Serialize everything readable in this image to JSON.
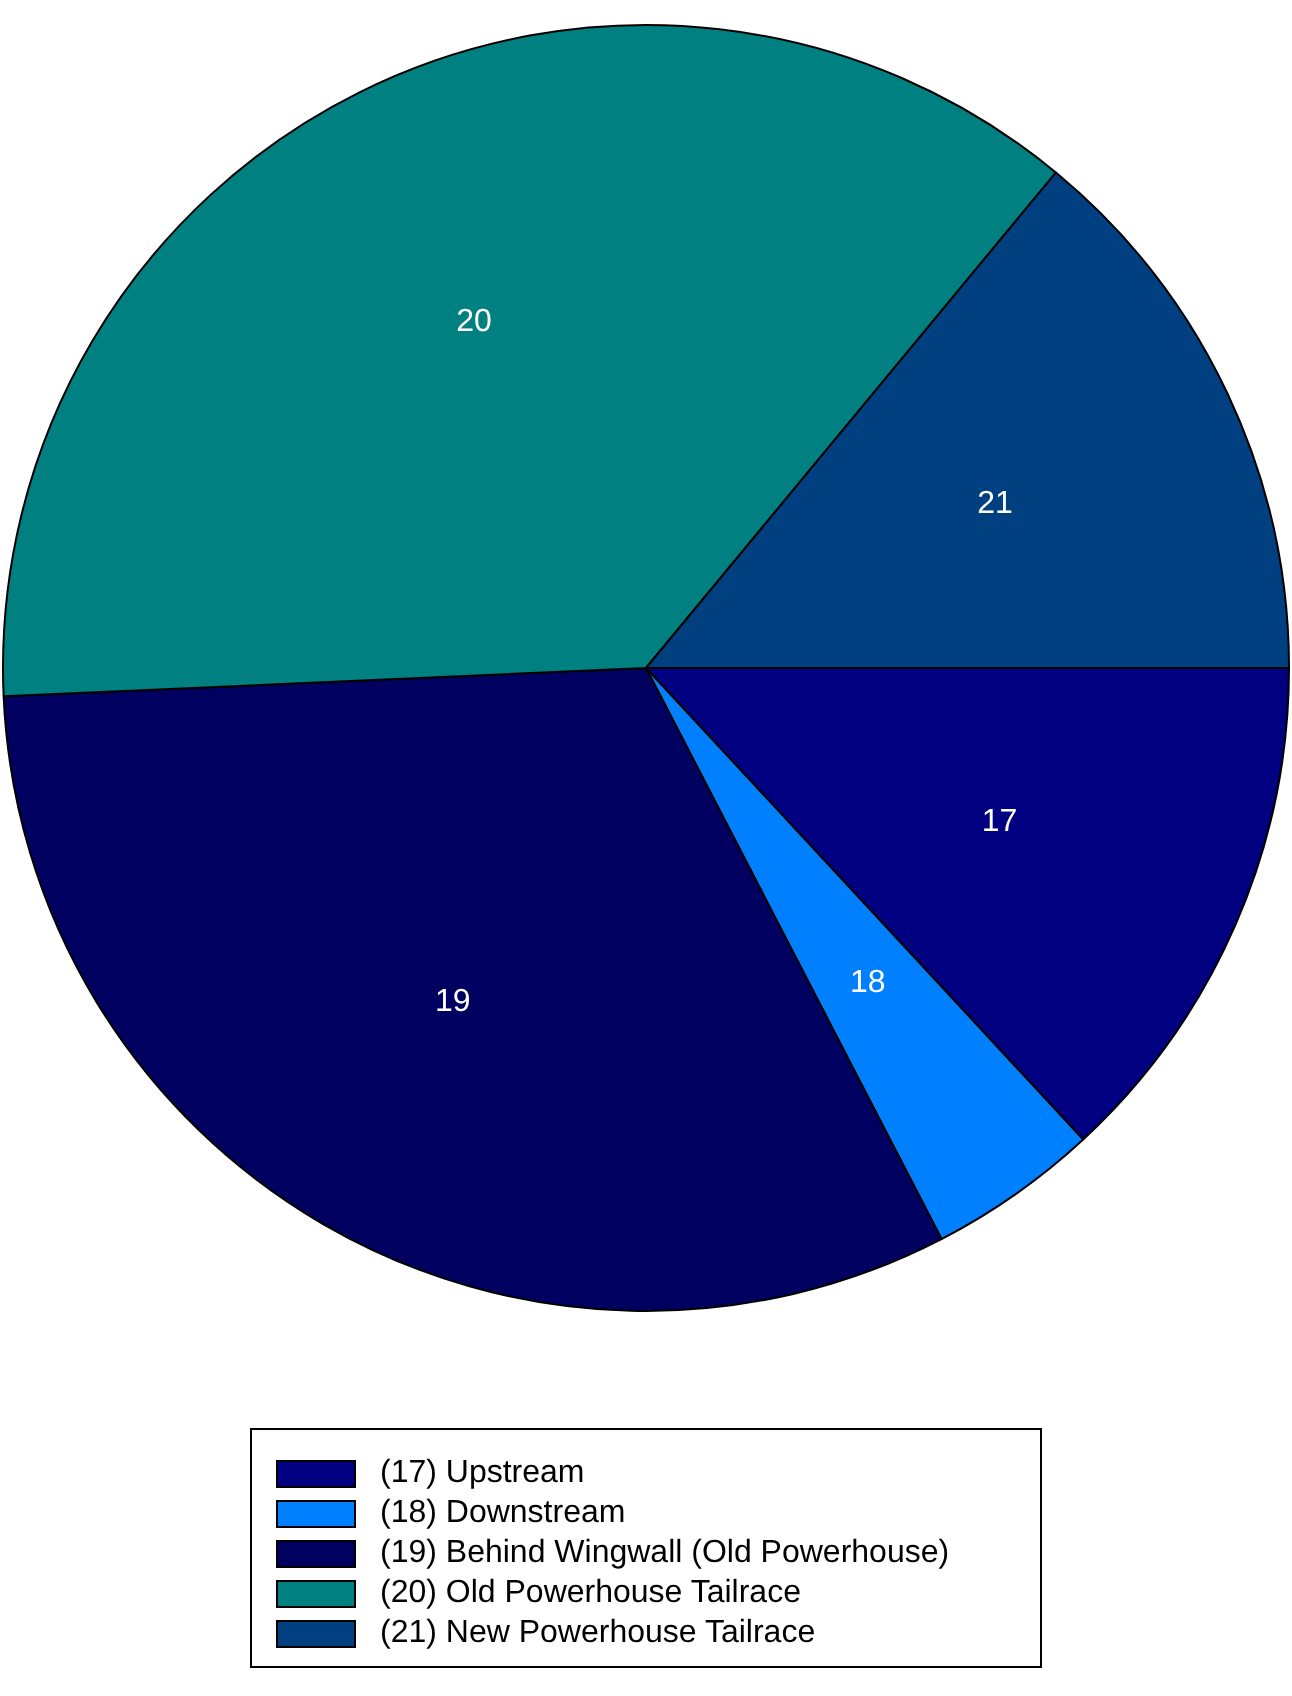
{
  "chart_data": {
    "type": "pie",
    "categories": [
      "(17) Upstream",
      "(18) Downstream",
      "(19) Behind Wingwall (Old Powerhouse)",
      "(20) Old Powerhouse Tailrace",
      "(21) New Powerhouse Tailrace"
    ],
    "values": [
      13.1,
      4.3,
      31.9,
      36.7,
      14.0
    ],
    "colors": [
      "#000080",
      "#0080ff",
      "#000060",
      "#008080",
      "#004080"
    ],
    "annotations": [
      "17",
      "18",
      "19",
      "20",
      "21"
    ],
    "legend": "bottom"
  }
}
